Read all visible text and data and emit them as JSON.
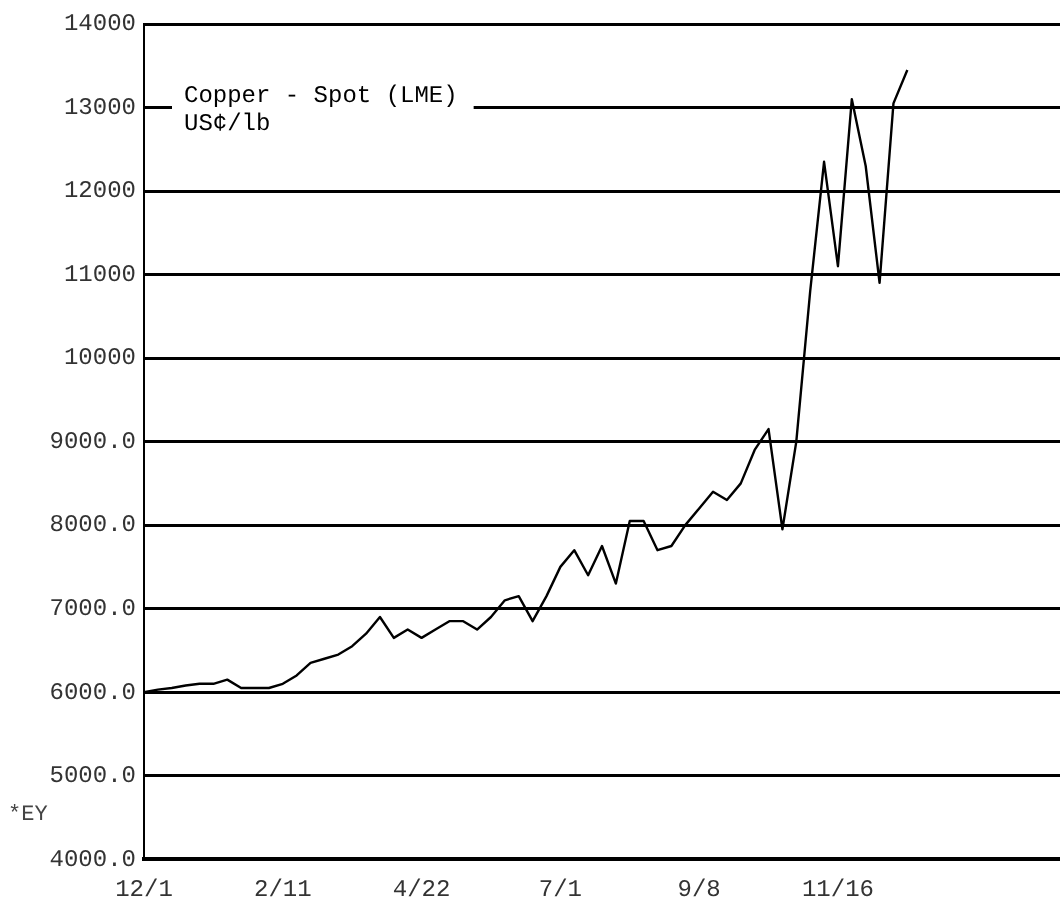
{
  "chart_data": {
    "type": "line",
    "title": "Copper - Spot (LME)",
    "subtitle": "US¢/lb",
    "annotations": [
      "*EY"
    ],
    "categories": [
      "12/1",
      null,
      null,
      null,
      null,
      null,
      null,
      null,
      null,
      null,
      "2/11",
      null,
      null,
      null,
      null,
      null,
      null,
      null,
      null,
      null,
      "4/22",
      null,
      null,
      null,
      null,
      null,
      null,
      null,
      null,
      null,
      "7/1",
      null,
      null,
      null,
      null,
      null,
      null,
      null,
      null,
      null,
      "9/8",
      null,
      null,
      null,
      null,
      null,
      null,
      null,
      null,
      null,
      "11/16",
      null,
      null,
      null,
      null,
      null,
      null,
      null,
      null,
      null,
      null,
      null,
      null,
      null,
      null,
      null,
      null
    ],
    "series": [
      {
        "color": "#000000",
        "values": [
          6000,
          6030,
          6050,
          6080,
          6100,
          6100,
          6150,
          6050,
          6050,
          6050,
          6100,
          6200,
          6350,
          6400,
          6450,
          6550,
          6700,
          6900,
          6650,
          6750,
          6650,
          6750,
          6850,
          6850,
          6750,
          6900,
          7100,
          7150,
          6850,
          7150,
          7500,
          7700,
          7400,
          7750,
          7300,
          8050,
          8050,
          7700,
          7750,
          8000,
          8200,
          8400,
          8300,
          8500,
          8900,
          9150,
          7950,
          9000,
          10800,
          12350,
          11100,
          13100,
          12300,
          10900,
          13050,
          13450,
          null,
          null,
          null,
          null,
          null,
          null,
          null,
          null,
          null,
          null,
          null
        ]
      }
    ],
    "ylim": [
      4000,
      14000
    ],
    "yticks": [
      {
        "value": 4000,
        "label": "4000.0"
      },
      {
        "value": 5000,
        "label": "5000.0"
      },
      {
        "value": 6000,
        "label": "6000.0"
      },
      {
        "value": 7000,
        "label": "7000.0"
      },
      {
        "value": 8000,
        "label": "8000.0"
      },
      {
        "value": 9000,
        "label": "9000.0"
      },
      10000,
      11000,
      12000,
      13000,
      14000
    ],
    "grid": "y",
    "marker": "none",
    "line_style": "solid",
    "legend": false
  }
}
